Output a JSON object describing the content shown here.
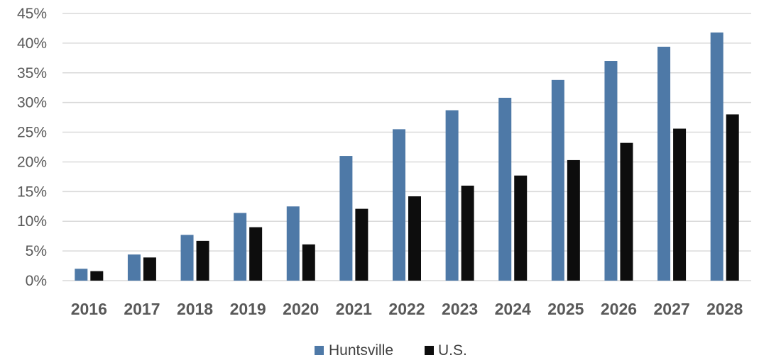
{
  "chart_data": {
    "type": "bar",
    "categories": [
      "2016",
      "2017",
      "2018",
      "2019",
      "2020",
      "2021",
      "2022",
      "2023",
      "2024",
      "2025",
      "2026",
      "2027",
      "2028"
    ],
    "series": [
      {
        "name": "Huntsville",
        "color": "#4e79a7",
        "values": [
          2.0,
          4.4,
          7.7,
          11.4,
          12.5,
          21.0,
          25.5,
          28.7,
          30.8,
          33.8,
          37.0,
          39.4,
          41.8
        ]
      },
      {
        "name": "U.S.",
        "color": "#0d0d0d",
        "values": [
          1.6,
          3.9,
          6.7,
          9.0,
          6.1,
          12.1,
          14.2,
          16.0,
          17.7,
          20.3,
          23.2,
          25.6,
          28.0
        ]
      }
    ],
    "ylim": [
      0,
      45
    ],
    "yticks": [
      "0%",
      "5%",
      "10%",
      "15%",
      "20%",
      "25%",
      "30%",
      "35%",
      "40%",
      "45%"
    ],
    "grid": true,
    "legend": "bottom-center",
    "title": "",
    "xlabel": "",
    "ylabel": ""
  }
}
